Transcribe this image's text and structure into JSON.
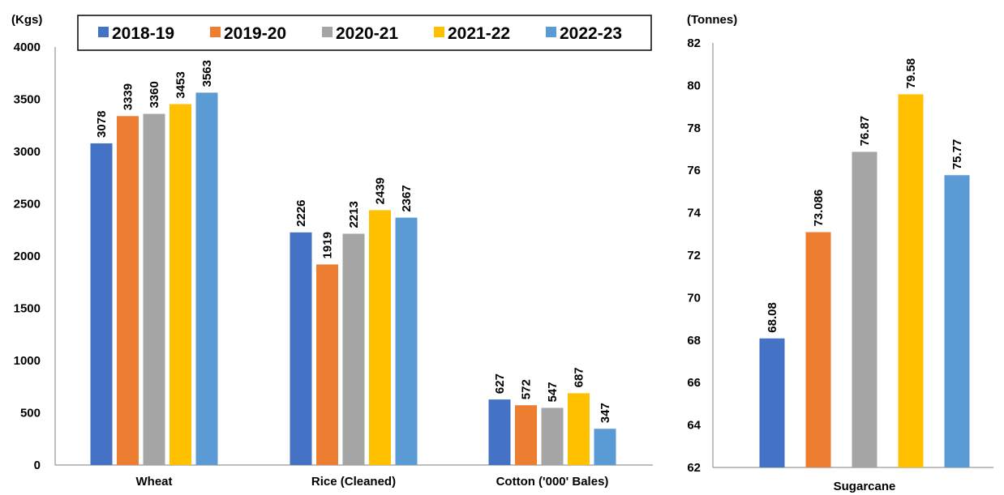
{
  "colors": {
    "2018-19": "#4472C4",
    "2019-20": "#ED7D31",
    "2020-21": "#A5A5A5",
    "2021-22": "#FFC000",
    "2022-23": "#5B9BD5"
  },
  "legend": {
    "items": [
      "2018-19",
      "2019-20",
      "2020-21",
      "2021-22",
      "2022-23"
    ],
    "placement": "top-center"
  },
  "chart_data": [
    {
      "type": "bar",
      "unit_label": "(Kgs)",
      "categories": [
        "Wheat",
        "Rice (Cleaned)",
        "Cotton ('000' Bales)"
      ],
      "series": [
        {
          "name": "2018-19",
          "values": [
            3078,
            2226,
            627
          ]
        },
        {
          "name": "2019-20",
          "values": [
            3339,
            1919,
            572
          ]
        },
        {
          "name": "2020-21",
          "values": [
            3360,
            2213,
            547
          ]
        },
        {
          "name": "2021-22",
          "values": [
            3453,
            2439,
            687
          ]
        },
        {
          "name": "2022-23",
          "values": [
            3563,
            2367,
            347
          ]
        }
      ],
      "ylim": [
        0,
        4000
      ],
      "yticks": [
        "0",
        "500",
        "1000",
        "1500",
        "2000",
        "2500",
        "3000",
        "3500",
        "4000"
      ],
      "grid": false
    },
    {
      "type": "bar",
      "unit_label": "(Tonnes)",
      "categories": [
        "Sugarcane"
      ],
      "series": [
        {
          "name": "2018-19",
          "values": [
            68.08
          ]
        },
        {
          "name": "2019-20",
          "values": [
            73.086
          ]
        },
        {
          "name": "2020-21",
          "values": [
            76.87
          ]
        },
        {
          "name": "2021-22",
          "values": [
            79.58
          ]
        },
        {
          "name": "2022-23",
          "values": [
            75.77
          ]
        }
      ],
      "ylim": [
        62,
        82
      ],
      "yticks": [
        "62",
        "64",
        "66",
        "68",
        "70",
        "72",
        "74",
        "76",
        "78",
        "80",
        "82"
      ],
      "grid": false
    }
  ]
}
